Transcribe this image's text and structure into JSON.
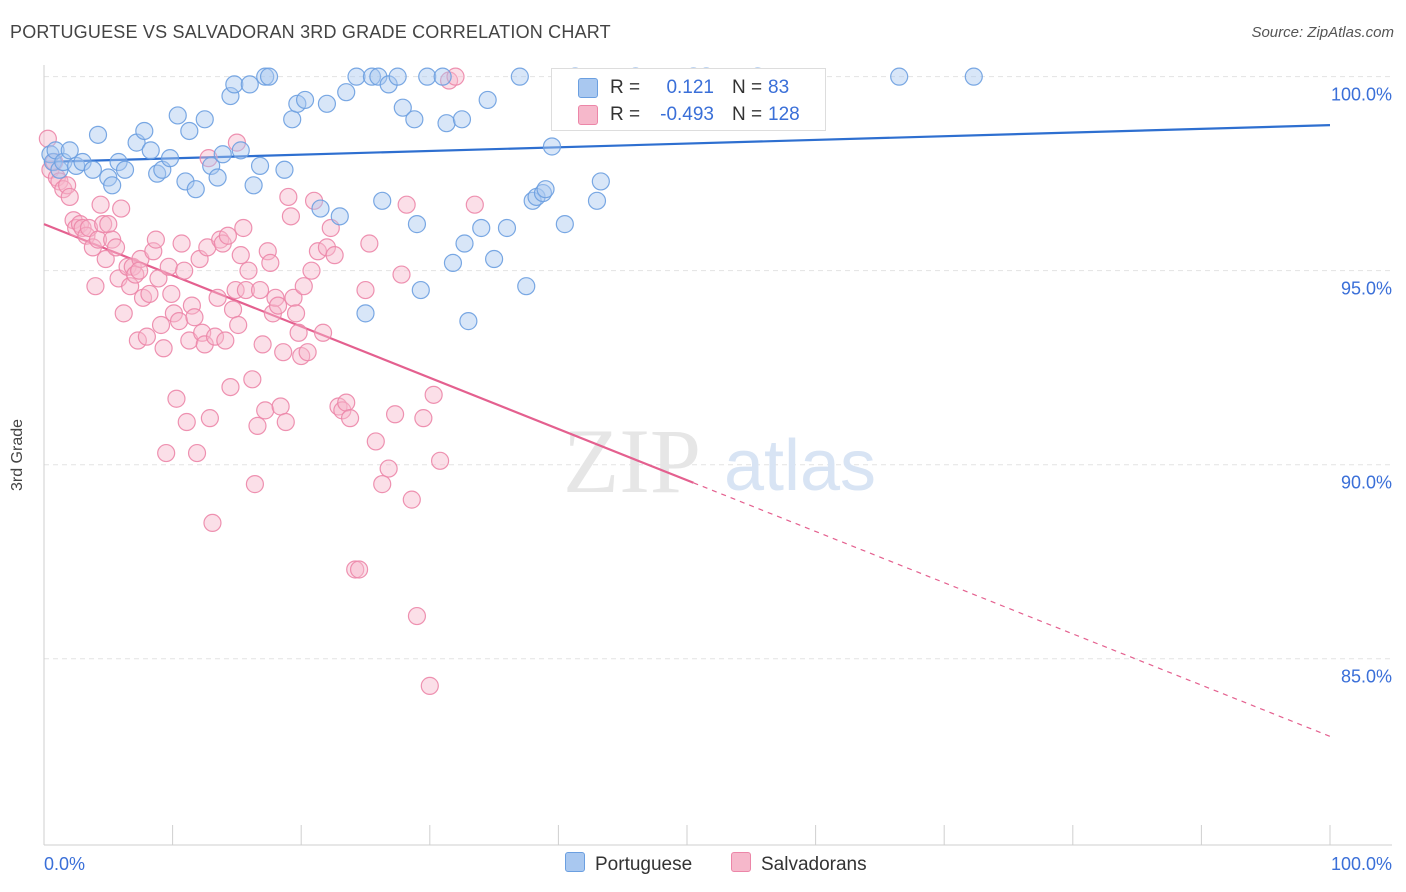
{
  "title": "PORTUGUESE VS SALVADORAN 3RD GRADE CORRELATION CHART",
  "source": "Source: ZipAtlas.com",
  "watermark": {
    "zip": "ZIP",
    "atlas": "atlas"
  },
  "colors": {
    "blue_fill": "#a9c8f0",
    "blue_stroke": "#6b9fe0",
    "blue_line": "#2e6fd0",
    "pink_fill": "#f6b8cb",
    "pink_stroke": "#ec86a8",
    "pink_line": "#e4608f",
    "axis_text": "#3a6fd8",
    "grid": "#e3e3e3"
  },
  "legend_top": {
    "rows": [
      {
        "series": "Portuguese",
        "r_label": "R =",
        "r_value": "0.121",
        "n_label": "N =",
        "n_value": "83"
      },
      {
        "series": "Salvadorans",
        "r_label": "R =",
        "r_value": "-0.493",
        "n_label": "N =",
        "n_value": "128"
      }
    ]
  },
  "legend_bottom": [
    "Portuguese",
    "Salvadorans"
  ],
  "chart_data": {
    "type": "scatter",
    "title": "PORTUGUESE VS SALVADORAN 3RD GRADE CORRELATION CHART",
    "xlabel": "",
    "ylabel": "3rd Grade",
    "xlim": [
      0,
      100
    ],
    "ylim": [
      80.2,
      100.3
    ],
    "x_tick_labels": [
      "0.0%",
      "100.0%"
    ],
    "y_ticks": [
      85,
      90,
      95,
      100
    ],
    "y_tick_labels": [
      "85.0%",
      "90.0%",
      "95.0%",
      "100.0%"
    ],
    "grid": true,
    "series": [
      {
        "name": "Portuguese",
        "R": 0.121,
        "N": 83,
        "trend": {
          "x0": 0,
          "y0": 97.8,
          "x1": 100,
          "y1": 98.75,
          "solid_until": 100
        },
        "points": [
          [
            0.5,
            98.0
          ],
          [
            0.7,
            97.8
          ],
          [
            0.9,
            98.1
          ],
          [
            1.2,
            97.6
          ],
          [
            1.5,
            97.8
          ],
          [
            2.0,
            98.1
          ],
          [
            2.5,
            97.7
          ],
          [
            3.0,
            97.8
          ],
          [
            3.8,
            97.6
          ],
          [
            4.2,
            98.5
          ],
          [
            5.0,
            97.4
          ],
          [
            5.3,
            97.2
          ],
          [
            5.8,
            97.8
          ],
          [
            6.3,
            97.6
          ],
          [
            7.2,
            98.3
          ],
          [
            7.8,
            98.6
          ],
          [
            8.3,
            98.1
          ],
          [
            8.8,
            97.5
          ],
          [
            9.2,
            97.6
          ],
          [
            9.8,
            97.9
          ],
          [
            10.4,
            99.0
          ],
          [
            11.0,
            97.3
          ],
          [
            11.3,
            98.6
          ],
          [
            11.8,
            97.1
          ],
          [
            12.5,
            98.9
          ],
          [
            13.0,
            97.7
          ],
          [
            13.5,
            97.4
          ],
          [
            13.9,
            98.0
          ],
          [
            14.5,
            99.5
          ],
          [
            14.8,
            99.8
          ],
          [
            15.3,
            98.1
          ],
          [
            16.0,
            99.8
          ],
          [
            16.3,
            97.2
          ],
          [
            16.8,
            97.7
          ],
          [
            17.2,
            100.0
          ],
          [
            17.5,
            100.0
          ],
          [
            18.7,
            97.6
          ],
          [
            19.3,
            98.9
          ],
          [
            19.7,
            99.3
          ],
          [
            20.3,
            99.4
          ],
          [
            21.5,
            96.6
          ],
          [
            22.0,
            99.3
          ],
          [
            23.0,
            96.4
          ],
          [
            23.5,
            99.6
          ],
          [
            24.3,
            100.0
          ],
          [
            25.0,
            93.9
          ],
          [
            25.5,
            100.0
          ],
          [
            26.0,
            100.0
          ],
          [
            26.3,
            96.8
          ],
          [
            26.8,
            99.8
          ],
          [
            27.5,
            100.0
          ],
          [
            27.9,
            99.2
          ],
          [
            28.8,
            98.9
          ],
          [
            29.0,
            96.2
          ],
          [
            29.3,
            94.5
          ],
          [
            29.8,
            100.0
          ],
          [
            31.0,
            100.0
          ],
          [
            31.3,
            98.8
          ],
          [
            31.8,
            95.2
          ],
          [
            32.5,
            98.9
          ],
          [
            32.7,
            95.7
          ],
          [
            33.0,
            93.7
          ],
          [
            34.0,
            96.1
          ],
          [
            34.5,
            99.4
          ],
          [
            35.0,
            95.3
          ],
          [
            36.0,
            96.1
          ],
          [
            37.0,
            100.0
          ],
          [
            37.5,
            94.6
          ],
          [
            38.0,
            96.8
          ],
          [
            38.3,
            96.9
          ],
          [
            38.8,
            97.0
          ],
          [
            39.0,
            97.1
          ],
          [
            39.5,
            98.2
          ],
          [
            40.5,
            96.2
          ],
          [
            41.3,
            100.0
          ],
          [
            43.0,
            96.8
          ],
          [
            43.3,
            97.3
          ],
          [
            46.0,
            100.0
          ],
          [
            50.5,
            100.0
          ],
          [
            51.5,
            100.0
          ],
          [
            55.5,
            100.0
          ],
          [
            66.5,
            100.0
          ],
          [
            72.3,
            100.0
          ]
        ]
      },
      {
        "name": "Salvadorans",
        "R": -0.493,
        "N": 128,
        "trend": {
          "x0": 0,
          "y0": 96.2,
          "x1": 100,
          "y1": 83.0,
          "solid_until": 50.5
        },
        "points": [
          [
            0.3,
            98.4
          ],
          [
            0.5,
            97.6
          ],
          [
            0.8,
            97.8
          ],
          [
            1.0,
            97.4
          ],
          [
            1.2,
            97.3
          ],
          [
            1.5,
            97.1
          ],
          [
            1.8,
            97.2
          ],
          [
            2.0,
            96.9
          ],
          [
            2.3,
            96.3
          ],
          [
            2.5,
            96.1
          ],
          [
            2.8,
            96.2
          ],
          [
            3.0,
            96.1
          ],
          [
            3.3,
            95.9
          ],
          [
            3.5,
            96.1
          ],
          [
            3.8,
            95.6
          ],
          [
            4.0,
            94.6
          ],
          [
            4.2,
            95.8
          ],
          [
            4.4,
            96.7
          ],
          [
            4.6,
            96.2
          ],
          [
            4.8,
            95.3
          ],
          [
            5.0,
            96.2
          ],
          [
            5.3,
            95.8
          ],
          [
            5.6,
            95.6
          ],
          [
            5.8,
            94.8
          ],
          [
            6.0,
            96.6
          ],
          [
            6.2,
            93.9
          ],
          [
            6.5,
            95.1
          ],
          [
            6.7,
            94.6
          ],
          [
            6.9,
            95.1
          ],
          [
            7.1,
            94.9
          ],
          [
            7.3,
            93.2
          ],
          [
            7.5,
            95.3
          ],
          [
            7.7,
            94.3
          ],
          [
            8.0,
            93.3
          ],
          [
            8.2,
            94.4
          ],
          [
            8.5,
            95.5
          ],
          [
            8.7,
            95.8
          ],
          [
            8.9,
            94.8
          ],
          [
            9.1,
            93.6
          ],
          [
            9.3,
            93.0
          ],
          [
            9.5,
            90.3
          ],
          [
            9.7,
            95.1
          ],
          [
            9.9,
            94.4
          ],
          [
            10.1,
            93.9
          ],
          [
            10.3,
            91.7
          ],
          [
            10.5,
            93.7
          ],
          [
            10.7,
            95.7
          ],
          [
            10.9,
            95.0
          ],
          [
            11.1,
            91.1
          ],
          [
            11.3,
            93.2
          ],
          [
            11.5,
            94.1
          ],
          [
            11.7,
            93.8
          ],
          [
            11.9,
            90.3
          ],
          [
            12.1,
            95.3
          ],
          [
            12.3,
            93.4
          ],
          [
            12.5,
            93.1
          ],
          [
            12.7,
            95.6
          ],
          [
            12.9,
            91.2
          ],
          [
            13.1,
            88.5
          ],
          [
            13.3,
            93.3
          ],
          [
            13.5,
            94.3
          ],
          [
            13.7,
            95.8
          ],
          [
            13.9,
            95.7
          ],
          [
            14.1,
            93.2
          ],
          [
            14.3,
            95.9
          ],
          [
            14.5,
            92.0
          ],
          [
            14.7,
            94.0
          ],
          [
            14.9,
            94.5
          ],
          [
            15.1,
            93.6
          ],
          [
            15.3,
            95.4
          ],
          [
            15.5,
            96.1
          ],
          [
            15.7,
            94.5
          ],
          [
            15.9,
            95.0
          ],
          [
            16.2,
            92.2
          ],
          [
            16.4,
            89.5
          ],
          [
            16.6,
            91.0
          ],
          [
            16.8,
            94.5
          ],
          [
            17.0,
            93.1
          ],
          [
            17.2,
            91.4
          ],
          [
            17.4,
            95.5
          ],
          [
            17.6,
            95.2
          ],
          [
            17.8,
            93.9
          ],
          [
            18.0,
            94.3
          ],
          [
            18.2,
            94.1
          ],
          [
            18.4,
            91.5
          ],
          [
            18.6,
            92.9
          ],
          [
            18.8,
            91.1
          ],
          [
            19.0,
            96.9
          ],
          [
            19.2,
            96.4
          ],
          [
            19.4,
            94.3
          ],
          [
            19.6,
            93.9
          ],
          [
            19.8,
            93.4
          ],
          [
            20.0,
            92.8
          ],
          [
            20.2,
            94.6
          ],
          [
            20.5,
            92.9
          ],
          [
            20.8,
            95.0
          ],
          [
            21.0,
            96.8
          ],
          [
            21.3,
            95.5
          ],
          [
            21.7,
            93.4
          ],
          [
            22.0,
            95.6
          ],
          [
            22.3,
            96.1
          ],
          [
            22.6,
            95.4
          ],
          [
            22.9,
            91.5
          ],
          [
            23.2,
            91.4
          ],
          [
            23.5,
            91.6
          ],
          [
            23.8,
            91.2
          ],
          [
            24.2,
            87.3
          ],
          [
            24.5,
            87.3
          ],
          [
            25.0,
            94.5
          ],
          [
            25.3,
            95.7
          ],
          [
            25.8,
            90.6
          ],
          [
            26.3,
            89.5
          ],
          [
            26.8,
            89.9
          ],
          [
            27.3,
            91.3
          ],
          [
            27.8,
            94.9
          ],
          [
            28.2,
            96.7
          ],
          [
            28.6,
            89.1
          ],
          [
            29.0,
            86.1
          ],
          [
            29.5,
            91.2
          ],
          [
            30.0,
            84.3
          ],
          [
            30.3,
            91.8
          ],
          [
            30.8,
            90.1
          ],
          [
            31.5,
            99.9
          ],
          [
            32.0,
            100.0
          ],
          [
            33.5,
            96.7
          ],
          [
            12.8,
            97.9
          ],
          [
            15.0,
            98.3
          ],
          [
            7.4,
            95.0
          ]
        ]
      }
    ]
  }
}
